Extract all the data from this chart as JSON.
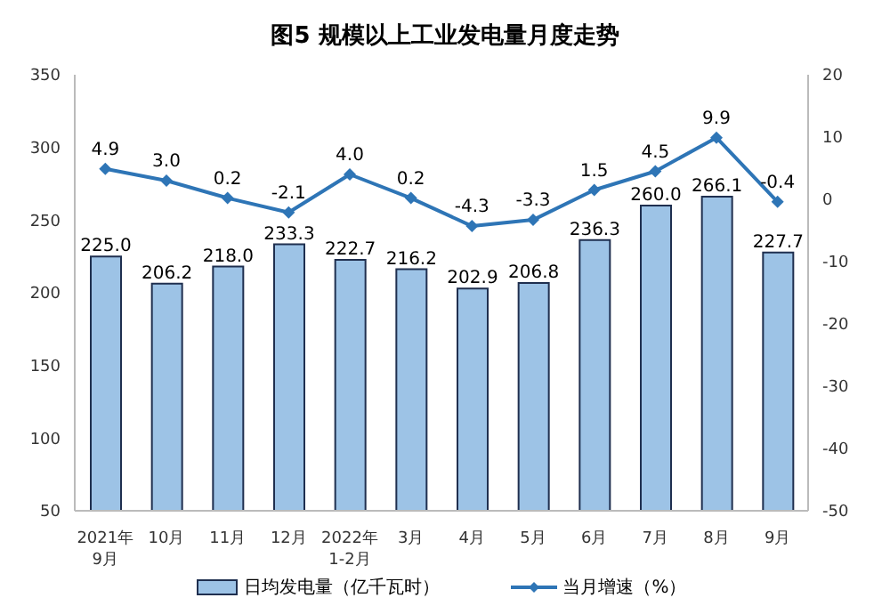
{
  "chart_data": {
    "type": "bar",
    "title": "图5  规模以上工业发电量月度走势",
    "categories": [
      "2021年\n9月",
      "10月",
      "11月",
      "12月",
      "2022年\n1-2月",
      "3月",
      "4月",
      "5月",
      "6月",
      "7月",
      "8月",
      "9月"
    ],
    "series": [
      {
        "name": "日均发电量（亿千瓦时）",
        "color": "#9dc3e6",
        "values": [
          225.0,
          206.2,
          218.0,
          233.3,
          222.7,
          216.2,
          202.9,
          206.8,
          236.3,
          260.0,
          266.1,
          227.7
        ],
        "value_labels": [
          "225.0",
          "206.2",
          "218.0",
          "233.3",
          "222.7",
          "216.2",
          "202.9",
          "206.8",
          "236.3",
          "260.0",
          "266.1",
          "227.7"
        ]
      },
      {
        "name": "当月增速（%）",
        "type": "line",
        "axis": "y2",
        "color": "#2e75b6",
        "marker": "diamond",
        "values": [
          4.9,
          3.0,
          0.2,
          -2.1,
          4.0,
          0.2,
          -4.3,
          -3.3,
          1.5,
          4.5,
          9.9,
          -0.4
        ],
        "value_labels": [
          "4.9",
          "3.0",
          "0.2",
          "-2.1",
          "4.0",
          "0.2",
          "-4.3",
          "-3.3",
          "1.5",
          "4.5",
          "9.9",
          "-0.4"
        ]
      }
    ],
    "ylim": [
      50,
      350
    ],
    "yticks": [
      50,
      100,
      150,
      200,
      250,
      300,
      350
    ],
    "y2lim": [
      -50,
      20
    ],
    "y2ticks": [
      -50,
      -40,
      -30,
      -20,
      -10,
      0,
      10,
      20
    ],
    "legend": "bottom"
  }
}
